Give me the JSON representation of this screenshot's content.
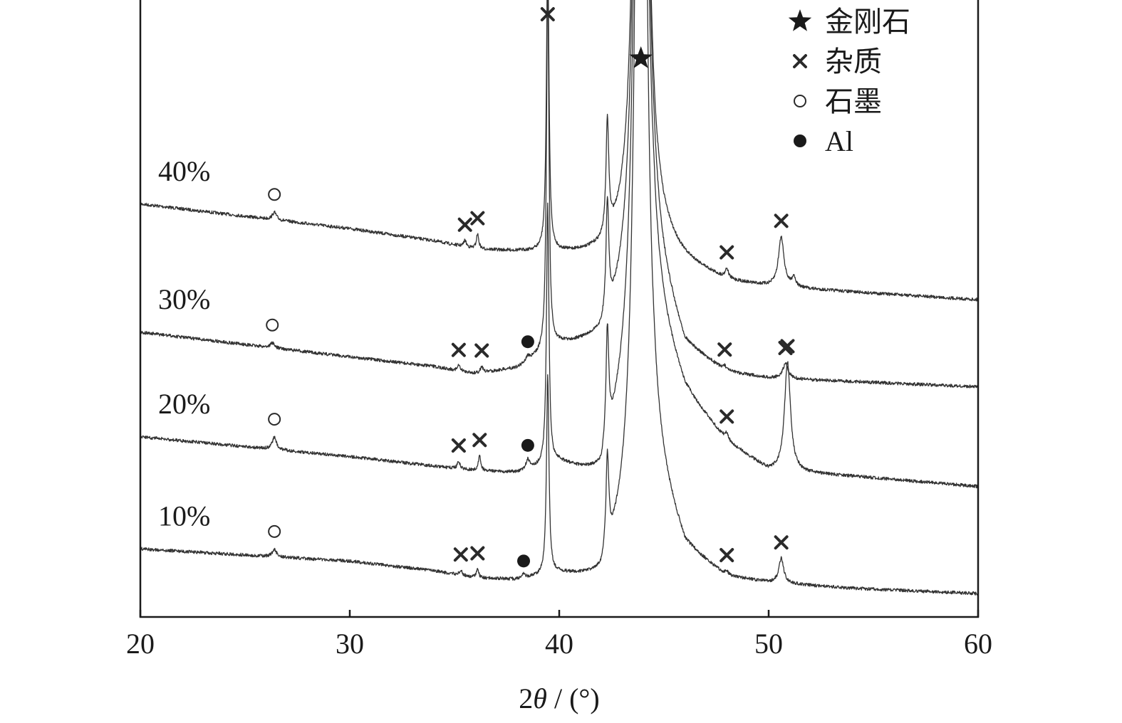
{
  "chart_data": {
    "type": "line",
    "title": "",
    "xlabel_prefix": "2",
    "xlabel_symbol": "θ",
    "xlabel_suffix": " / (°)",
    "ylabel": "",
    "xlim": [
      20,
      60
    ],
    "x_ticks": [
      20,
      30,
      40,
      50,
      60
    ],
    "y_scale": "arbitrary (offset stacked traces, no y axis labels)",
    "grid": false,
    "legend_position": "top-right",
    "legend": [
      {
        "label": "金刚石",
        "marker": "star"
      },
      {
        "label": "杂质",
        "marker": "cross"
      },
      {
        "label": "石墨",
        "marker": "open-circle"
      },
      {
        "label": "Al",
        "marker": "filled-circle"
      }
    ],
    "series": [
      {
        "name": "40%",
        "baseline": [
          [
            20,
            3.15
          ],
          [
            30,
            2.95
          ],
          [
            34,
            2.85
          ],
          [
            36,
            2.78
          ],
          [
            38,
            2.76
          ],
          [
            40,
            2.74
          ],
          [
            42,
            2.72
          ],
          [
            44.5,
            2.84
          ],
          [
            46,
            2.66
          ],
          [
            48,
            2.52
          ],
          [
            50,
            2.48
          ],
          [
            54,
            2.44
          ],
          [
            60,
            2.38
          ]
        ],
        "peaks": [
          {
            "x": 26.4,
            "h": 0.06,
            "w": 0.12,
            "marker": "open-circle"
          },
          {
            "x": 35.5,
            "h": 0.05,
            "w": 0.08,
            "marker": "cross"
          },
          {
            "x": 36.1,
            "h": 0.12,
            "w": 0.07,
            "marker": "cross"
          },
          {
            "x": 39.45,
            "h": 2.5,
            "w": 0.07,
            "marker": "cross"
          },
          {
            "x": 42.3,
            "h": 0.9,
            "w": 0.08
          },
          {
            "x": 43.9,
            "h": 12,
            "w": 0.22,
            "marker": "star"
          },
          {
            "x": 48.0,
            "h": 0.08,
            "w": 0.1,
            "marker": "cross"
          },
          {
            "x": 50.6,
            "h": 0.4,
            "w": 0.16,
            "marker": "cross"
          },
          {
            "x": 51.2,
            "h": 0.08,
            "w": 0.1
          }
        ]
      },
      {
        "name": "30%",
        "baseline": [
          [
            20,
            2.12
          ],
          [
            30,
            1.92
          ],
          [
            34,
            1.84
          ],
          [
            36,
            1.78
          ],
          [
            38,
            1.82
          ],
          [
            40,
            2.0
          ],
          [
            42,
            2.02
          ],
          [
            44.5,
            2.6
          ],
          [
            46,
            1.96
          ],
          [
            48,
            1.78
          ],
          [
            50,
            1.74
          ],
          [
            54,
            1.72
          ],
          [
            60,
            1.68
          ]
        ],
        "peaks": [
          {
            "x": 26.3,
            "h": 0.04,
            "w": 0.12,
            "marker": "open-circle"
          },
          {
            "x": 35.2,
            "h": 0.04,
            "w": 0.08,
            "marker": "cross"
          },
          {
            "x": 36.3,
            "h": 0.05,
            "w": 0.08,
            "marker": "cross"
          },
          {
            "x": 38.5,
            "h": 0.04,
            "w": 0.1,
            "marker": "filled-circle"
          },
          {
            "x": 39.45,
            "h": 3.0,
            "w": 0.07
          },
          {
            "x": 42.3,
            "h": 0.9,
            "w": 0.08
          },
          {
            "x": 43.9,
            "h": 12,
            "w": 0.22
          },
          {
            "x": 47.9,
            "h": 0.03,
            "w": 0.1,
            "marker": "cross"
          },
          {
            "x": 50.8,
            "h": 0.12,
            "w": 0.16,
            "marker": "cross"
          }
        ]
      },
      {
        "name": "20%",
        "baseline": [
          [
            20,
            1.28
          ],
          [
            30,
            1.12
          ],
          [
            34,
            1.04
          ],
          [
            36,
            1.0
          ],
          [
            38,
            0.98
          ],
          [
            40,
            1.05
          ],
          [
            42,
            0.92
          ],
          [
            44.5,
            2.2
          ],
          [
            46,
            1.6
          ],
          [
            48,
            1.22
          ],
          [
            50,
            1.0
          ],
          [
            54,
            0.96
          ],
          [
            60,
            0.88
          ]
        ],
        "peaks": [
          {
            "x": 26.4,
            "h": 0.1,
            "w": 0.12,
            "marker": "open-circle"
          },
          {
            "x": 35.2,
            "h": 0.06,
            "w": 0.08,
            "marker": "cross"
          },
          {
            "x": 36.2,
            "h": 0.12,
            "w": 0.07,
            "marker": "cross"
          },
          {
            "x": 38.5,
            "h": 0.08,
            "w": 0.1,
            "marker": "filled-circle"
          },
          {
            "x": 39.45,
            "h": 2.1,
            "w": 0.07
          },
          {
            "x": 42.3,
            "h": 0.9,
            "w": 0.08
          },
          {
            "x": 43.9,
            "h": 12,
            "w": 0.22
          },
          {
            "x": 48.0,
            "h": 0.06,
            "w": 0.1,
            "marker": "cross"
          },
          {
            "x": 50.9,
            "h": 0.88,
            "w": 0.17,
            "marker": "cross"
          }
        ]
      },
      {
        "name": "10%",
        "baseline": [
          [
            20,
            0.38
          ],
          [
            30,
            0.28
          ],
          [
            34,
            0.2
          ],
          [
            36,
            0.14
          ],
          [
            38,
            0.12
          ],
          [
            40,
            0.16
          ],
          [
            42,
            0.1
          ],
          [
            44.5,
            0.95
          ],
          [
            46,
            0.35
          ],
          [
            48,
            0.14
          ],
          [
            50,
            0.1
          ],
          [
            54,
            0.06
          ],
          [
            60,
            0.02
          ]
        ],
        "peaks": [
          {
            "x": 26.4,
            "h": 0.06,
            "w": 0.12,
            "marker": "open-circle"
          },
          {
            "x": 35.3,
            "h": 0.04,
            "w": 0.08,
            "marker": "cross"
          },
          {
            "x": 36.1,
            "h": 0.07,
            "w": 0.07,
            "marker": "cross"
          },
          {
            "x": 38.3,
            "h": 0.03,
            "w": 0.1,
            "marker": "filled-circle"
          },
          {
            "x": 39.45,
            "h": 1.6,
            "w": 0.07
          },
          {
            "x": 42.3,
            "h": 0.75,
            "w": 0.08
          },
          {
            "x": 43.9,
            "h": 12,
            "w": 0.22
          },
          {
            "x": 48.0,
            "h": 0.03,
            "w": 0.1,
            "marker": "cross"
          },
          {
            "x": 50.6,
            "h": 0.2,
            "w": 0.14,
            "marker": "cross"
          }
        ]
      }
    ]
  }
}
